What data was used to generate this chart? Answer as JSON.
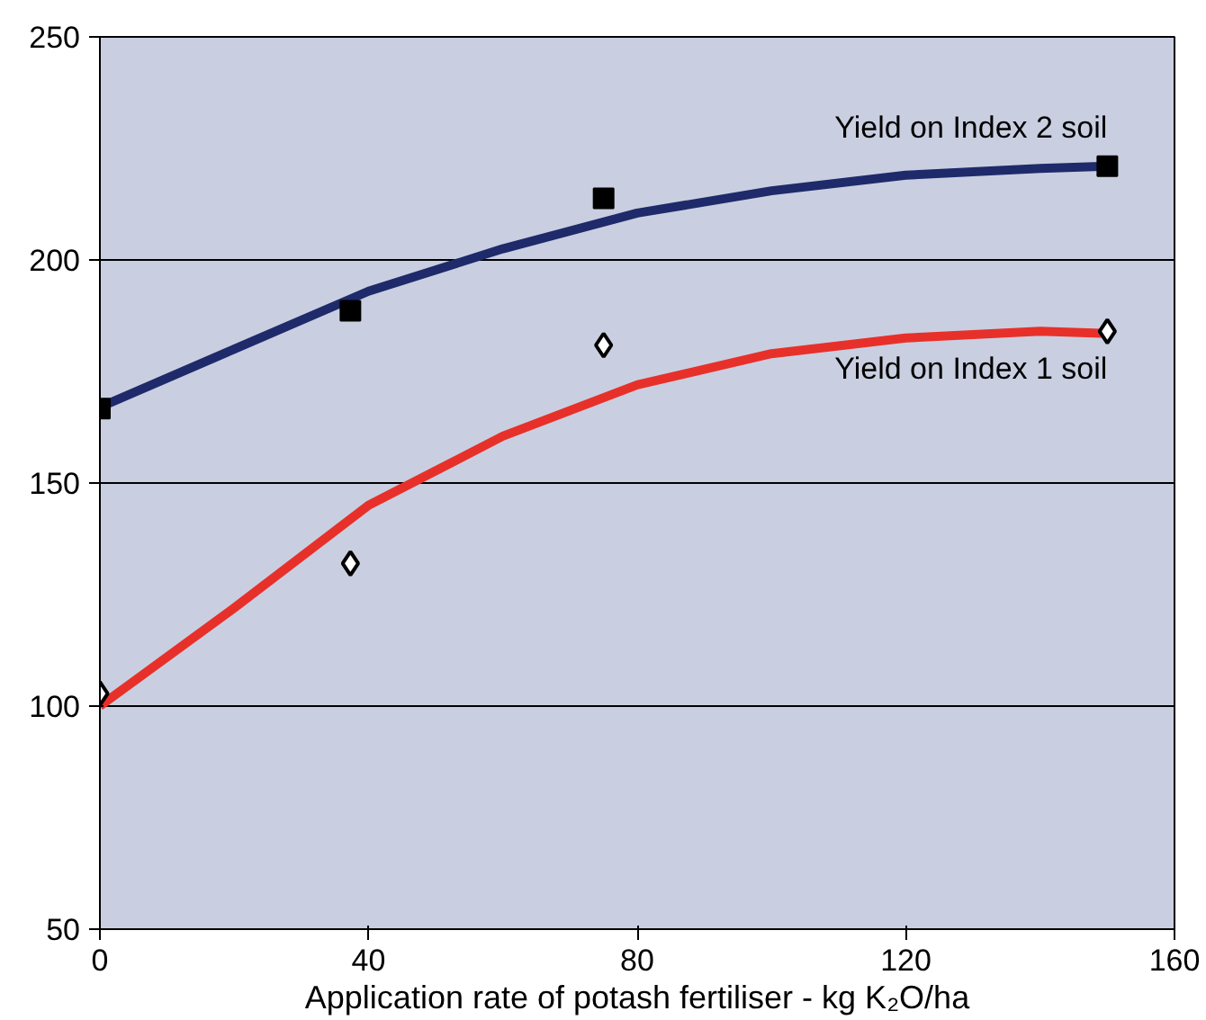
{
  "chart_data": {
    "type": "line",
    "xlabel": "Application rate of potash fertiliser - kg K₂O/ha",
    "xlim": [
      0,
      160
    ],
    "xticks": [
      0,
      40,
      80,
      120,
      160
    ],
    "ylim": [
      50,
      250
    ],
    "yticks": [
      50,
      100,
      150,
      200,
      250
    ],
    "grid": "y",
    "legend": false,
    "series": [
      {
        "name": "Yield on Index 2 soil",
        "color": "#1f2a6b",
        "x": [
          0,
          20,
          40,
          60,
          80,
          100,
          120,
          140,
          150
        ],
        "values": [
          167,
          180,
          193,
          202.5,
          210.5,
          215.5,
          219,
          220.5,
          221
        ]
      },
      {
        "name": "Yield on Index 1 soil",
        "color": "#e8302a",
        "x": [
          0,
          20,
          40,
          60,
          80,
          100,
          120,
          140,
          150
        ],
        "values": [
          100,
          122,
          145,
          160.5,
          172,
          179,
          182.5,
          184,
          183.5
        ]
      },
      {
        "type": "scatter",
        "marker": "square",
        "color": "#000000",
        "x": [
          0,
          37.3,
          75,
          150
        ],
        "values": [
          166.7,
          188.6,
          213.8,
          221
        ]
      },
      {
        "type": "scatter",
        "marker": "diamond",
        "color": "#000000",
        "x": [
          0,
          37.3,
          75,
          150
        ],
        "values": [
          102.8,
          132,
          180.9,
          184
        ]
      }
    ]
  }
}
